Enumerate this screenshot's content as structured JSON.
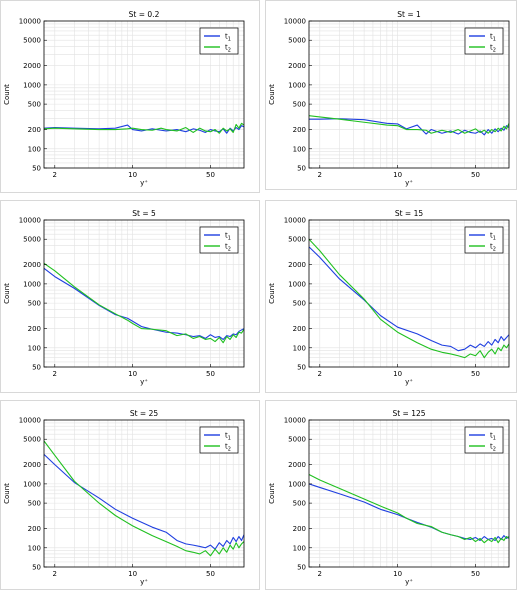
{
  "legend_series": [
    {
      "label": "t",
      "sub": "1",
      "color": "#1f3fe0"
    },
    {
      "label": "t",
      "sub": "2",
      "color": "#20c020"
    }
  ],
  "x_tick_labels": [
    "2",
    "10",
    "50"
  ],
  "y_tick_labels": [
    "10000",
    "5000",
    "2000",
    "1000",
    "500",
    "200",
    "100",
    "50"
  ],
  "chart_data": [
    {
      "type": "line",
      "title": "St = 0.2",
      "xlabel": "y⁺",
      "ylabel": "Count",
      "xscale": "log",
      "yscale": "log",
      "xlim": [
        1.6,
        100
      ],
      "ylim": [
        50,
        10000
      ],
      "grid": true,
      "legend": "top-right",
      "series": [
        {
          "name": "t1",
          "color": "#1f3fe0",
          "x": [
            1.6,
            2,
            3,
            5,
            7,
            9,
            10,
            12,
            15,
            18,
            20,
            25,
            30,
            35,
            40,
            45,
            50,
            55,
            60,
            65,
            70,
            75,
            80,
            85,
            90,
            95,
            100
          ],
          "y": [
            210,
            215,
            210,
            205,
            210,
            235,
            200,
            190,
            205,
            195,
            190,
            200,
            185,
            205,
            195,
            180,
            200,
            190,
            185,
            205,
            175,
            210,
            190,
            215,
            200,
            230,
            220
          ]
        },
        {
          "name": "t2",
          "color": "#20c020",
          "x": [
            1.6,
            2,
            3,
            5,
            7,
            9,
            10,
            12,
            15,
            18,
            20,
            25,
            30,
            35,
            40,
            45,
            50,
            55,
            60,
            65,
            70,
            75,
            80,
            85,
            90,
            95,
            100
          ],
          "y": [
            205,
            210,
            205,
            200,
            200,
            205,
            210,
            200,
            195,
            210,
            200,
            190,
            215,
            180,
            210,
            190,
            185,
            200,
            175,
            210,
            190,
            205,
            180,
            240,
            210,
            250,
            235
          ]
        }
      ]
    },
    {
      "type": "line",
      "title": "St = 1",
      "xlabel": "y⁺",
      "ylabel": "Count",
      "xscale": "log",
      "yscale": "log",
      "xlim": [
        1.6,
        100
      ],
      "ylim": [
        50,
        10000
      ],
      "grid": true,
      "legend": "top-right",
      "series": [
        {
          "name": "t1",
          "color": "#1f3fe0",
          "x": [
            1.6,
            2,
            3,
            5,
            8,
            10,
            12,
            15,
            18,
            20,
            25,
            30,
            35,
            40,
            45,
            50,
            55,
            60,
            65,
            70,
            75,
            80,
            85,
            90,
            95,
            100
          ],
          "y": [
            290,
            290,
            295,
            285,
            250,
            245,
            205,
            235,
            170,
            200,
            175,
            190,
            170,
            195,
            180,
            175,
            190,
            165,
            200,
            175,
            205,
            185,
            210,
            195,
            230,
            215
          ]
        },
        {
          "name": "t2",
          "color": "#20c020",
          "x": [
            1.6,
            2,
            3,
            5,
            8,
            10,
            12,
            15,
            18,
            20,
            25,
            30,
            35,
            40,
            45,
            50,
            55,
            60,
            65,
            70,
            75,
            80,
            85,
            90,
            95,
            100
          ],
          "y": [
            330,
            315,
            290,
            260,
            235,
            230,
            200,
            200,
            195,
            175,
            195,
            180,
            200,
            175,
            190,
            205,
            180,
            195,
            175,
            200,
            185,
            210,
            190,
            225,
            205,
            250
          ]
        }
      ]
    },
    {
      "type": "line",
      "title": "St = 5",
      "xlabel": "y⁺",
      "ylabel": "Count",
      "xscale": "log",
      "yscale": "log",
      "xlim": [
        1.6,
        100
      ],
      "ylim": [
        50,
        10000
      ],
      "grid": true,
      "legend": "top-right",
      "series": [
        {
          "name": "t1",
          "color": "#1f3fe0",
          "x": [
            1.6,
            2,
            3,
            5,
            7,
            9,
            10,
            12,
            15,
            20,
            25,
            30,
            35,
            40,
            45,
            50,
            55,
            60,
            65,
            70,
            75,
            80,
            85,
            90,
            95,
            100
          ],
          "y": [
            1750,
            1300,
            850,
            460,
            330,
            290,
            260,
            215,
            195,
            175,
            170,
            160,
            150,
            155,
            140,
            160,
            145,
            150,
            135,
            155,
            150,
            165,
            160,
            180,
            190,
            200
          ]
        },
        {
          "name": "t2",
          "color": "#20c020",
          "x": [
            1.6,
            2,
            3,
            5,
            7,
            9,
            10,
            12,
            15,
            20,
            25,
            30,
            35,
            40,
            45,
            50,
            55,
            60,
            65,
            70,
            75,
            80,
            85,
            90,
            95,
            100
          ],
          "y": [
            2100,
            1600,
            900,
            470,
            340,
            270,
            240,
            200,
            195,
            185,
            155,
            165,
            140,
            150,
            135,
            140,
            125,
            145,
            120,
            150,
            135,
            160,
            145,
            175,
            170,
            195
          ]
        }
      ]
    },
    {
      "type": "line",
      "title": "St = 15",
      "xlabel": "y⁺",
      "ylabel": "Count",
      "xscale": "log",
      "yscale": "log",
      "xlim": [
        1.6,
        100
      ],
      "ylim": [
        50,
        10000
      ],
      "grid": true,
      "legend": "top-right",
      "series": [
        {
          "name": "t1",
          "color": "#1f3fe0",
          "x": [
            1.6,
            2,
            3,
            5,
            7,
            10,
            15,
            20,
            25,
            30,
            35,
            40,
            45,
            50,
            55,
            60,
            65,
            70,
            75,
            80,
            85,
            90,
            95,
            100
          ],
          "y": [
            3800,
            2600,
            1200,
            560,
            320,
            210,
            165,
            130,
            110,
            105,
            90,
            95,
            110,
            100,
            115,
            105,
            125,
            110,
            135,
            120,
            150,
            130,
            145,
            160
          ]
        },
        {
          "name": "t2",
          "color": "#20c020",
          "x": [
            1.6,
            2,
            3,
            5,
            7,
            10,
            15,
            20,
            25,
            30,
            35,
            40,
            45,
            50,
            55,
            60,
            65,
            70,
            75,
            80,
            85,
            90,
            95,
            100
          ],
          "y": [
            5000,
            3300,
            1400,
            580,
            280,
            175,
            120,
            95,
            85,
            80,
            75,
            70,
            80,
            75,
            90,
            70,
            85,
            95,
            80,
            100,
            90,
            110,
            100,
            115
          ]
        }
      ]
    },
    {
      "type": "line",
      "title": "St = 25",
      "xlabel": "y⁺",
      "ylabel": "Count",
      "xscale": "log",
      "yscale": "log",
      "xlim": [
        1.6,
        100
      ],
      "ylim": [
        50,
        10000
      ],
      "grid": true,
      "legend": "top-right",
      "series": [
        {
          "name": "t1",
          "color": "#1f3fe0",
          "x": [
            1.6,
            2,
            3,
            5,
            7,
            10,
            15,
            20,
            25,
            30,
            35,
            40,
            45,
            50,
            55,
            60,
            65,
            70,
            75,
            80,
            85,
            90,
            95,
            100
          ],
          "y": [
            2900,
            2000,
            1050,
            600,
            400,
            290,
            210,
            175,
            130,
            115,
            110,
            105,
            100,
            110,
            95,
            120,
            105,
            130,
            115,
            145,
            125,
            150,
            130,
            160
          ]
        },
        {
          "name": "t2",
          "color": "#20c020",
          "x": [
            1.6,
            2,
            3,
            5,
            7,
            10,
            15,
            20,
            25,
            30,
            35,
            40,
            45,
            50,
            55,
            60,
            65,
            70,
            75,
            80,
            85,
            90,
            95,
            100
          ],
          "y": [
            4700,
            2800,
            1100,
            500,
            320,
            220,
            155,
            125,
            105,
            90,
            85,
            80,
            90,
            75,
            95,
            80,
            100,
            85,
            110,
            95,
            120,
            100,
            115,
            125
          ]
        }
      ]
    },
    {
      "type": "line",
      "title": "St = 125",
      "xlabel": "y⁺",
      "ylabel": "Count",
      "xscale": "log",
      "yscale": "log",
      "xlim": [
        1.6,
        100
      ],
      "ylim": [
        50,
        10000
      ],
      "grid": true,
      "legend": "top-right",
      "series": [
        {
          "name": "t1",
          "color": "#1f3fe0",
          "x": [
            1.6,
            2,
            3,
            5,
            7,
            10,
            12,
            15,
            20,
            25,
            30,
            35,
            40,
            45,
            50,
            55,
            60,
            65,
            70,
            75,
            80,
            85,
            90,
            95,
            100
          ],
          "y": [
            1000,
            880,
            700,
            520,
            400,
            330,
            290,
            250,
            210,
            175,
            160,
            150,
            140,
            135,
            145,
            130,
            150,
            135,
            140,
            130,
            150,
            135,
            155,
            140,
            150
          ]
        },
        {
          "name": "t2",
          "color": "#20c020",
          "x": [
            1.6,
            2,
            3,
            5,
            7,
            10,
            12,
            15,
            20,
            25,
            30,
            35,
            40,
            45,
            50,
            55,
            60,
            65,
            70,
            75,
            80,
            85,
            90,
            95,
            100
          ],
          "y": [
            1400,
            1150,
            850,
            580,
            450,
            350,
            290,
            240,
            215,
            175,
            160,
            150,
            135,
            145,
            125,
            140,
            120,
            135,
            125,
            145,
            120,
            140,
            130,
            150,
            140
          ]
        }
      ]
    }
  ]
}
